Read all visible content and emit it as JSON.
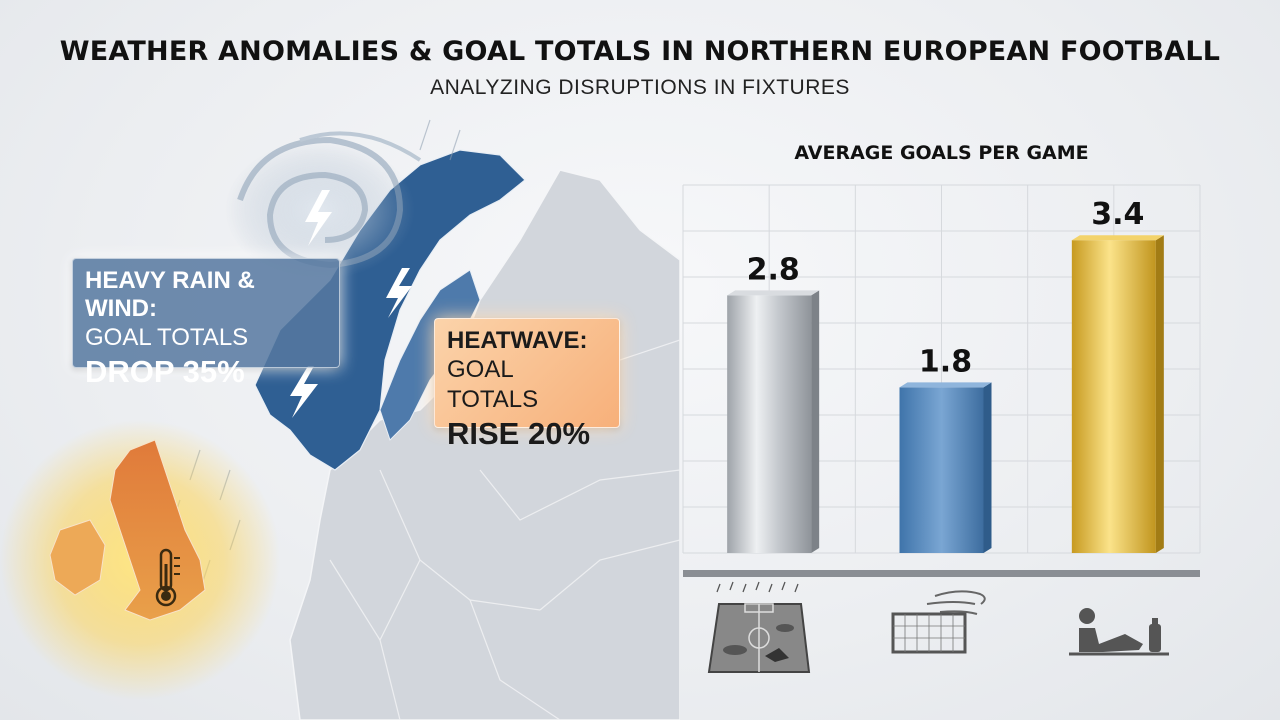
{
  "header": {
    "title": "WEATHER ANOMALIES & GOAL TOTALS IN NORTHERN EUROPEAN FOOTBALL",
    "subtitle": "ANALYZING DISRUPTIONS IN FIXTURES"
  },
  "callouts": {
    "rain": {
      "line1": "HEAVY RAIN & WIND:",
      "line2": "GOAL TOTALS",
      "line3": "DROP 35%"
    },
    "heat": {
      "line1": "HEATWAVE:",
      "line2": "GOAL TOTALS",
      "line3": "RISE 20%"
    }
  },
  "icons": [
    "storm-icon",
    "lightning-icon",
    "thermometer-icon",
    "waterlogged-pitch-icon",
    "wind-goal-icon",
    "tired-player-icon"
  ],
  "colors": {
    "rain": "#4f7cae",
    "heat": "#e8873f",
    "neutral": "#b8bcc2",
    "gold": "#d9b43a",
    "blue_bar": "#5a8dc2"
  },
  "chart_data": {
    "type": "bar",
    "title": "AVERAGE GOALS PER GAME",
    "categories": [
      "",
      "",
      ""
    ],
    "values": [
      2.8,
      1.8,
      3.4
    ],
    "value_labels": [
      "2.8",
      "1.8",
      "3.4"
    ],
    "ylim": [
      0,
      4
    ],
    "grid": true,
    "xlabel": "",
    "ylabel": ""
  }
}
